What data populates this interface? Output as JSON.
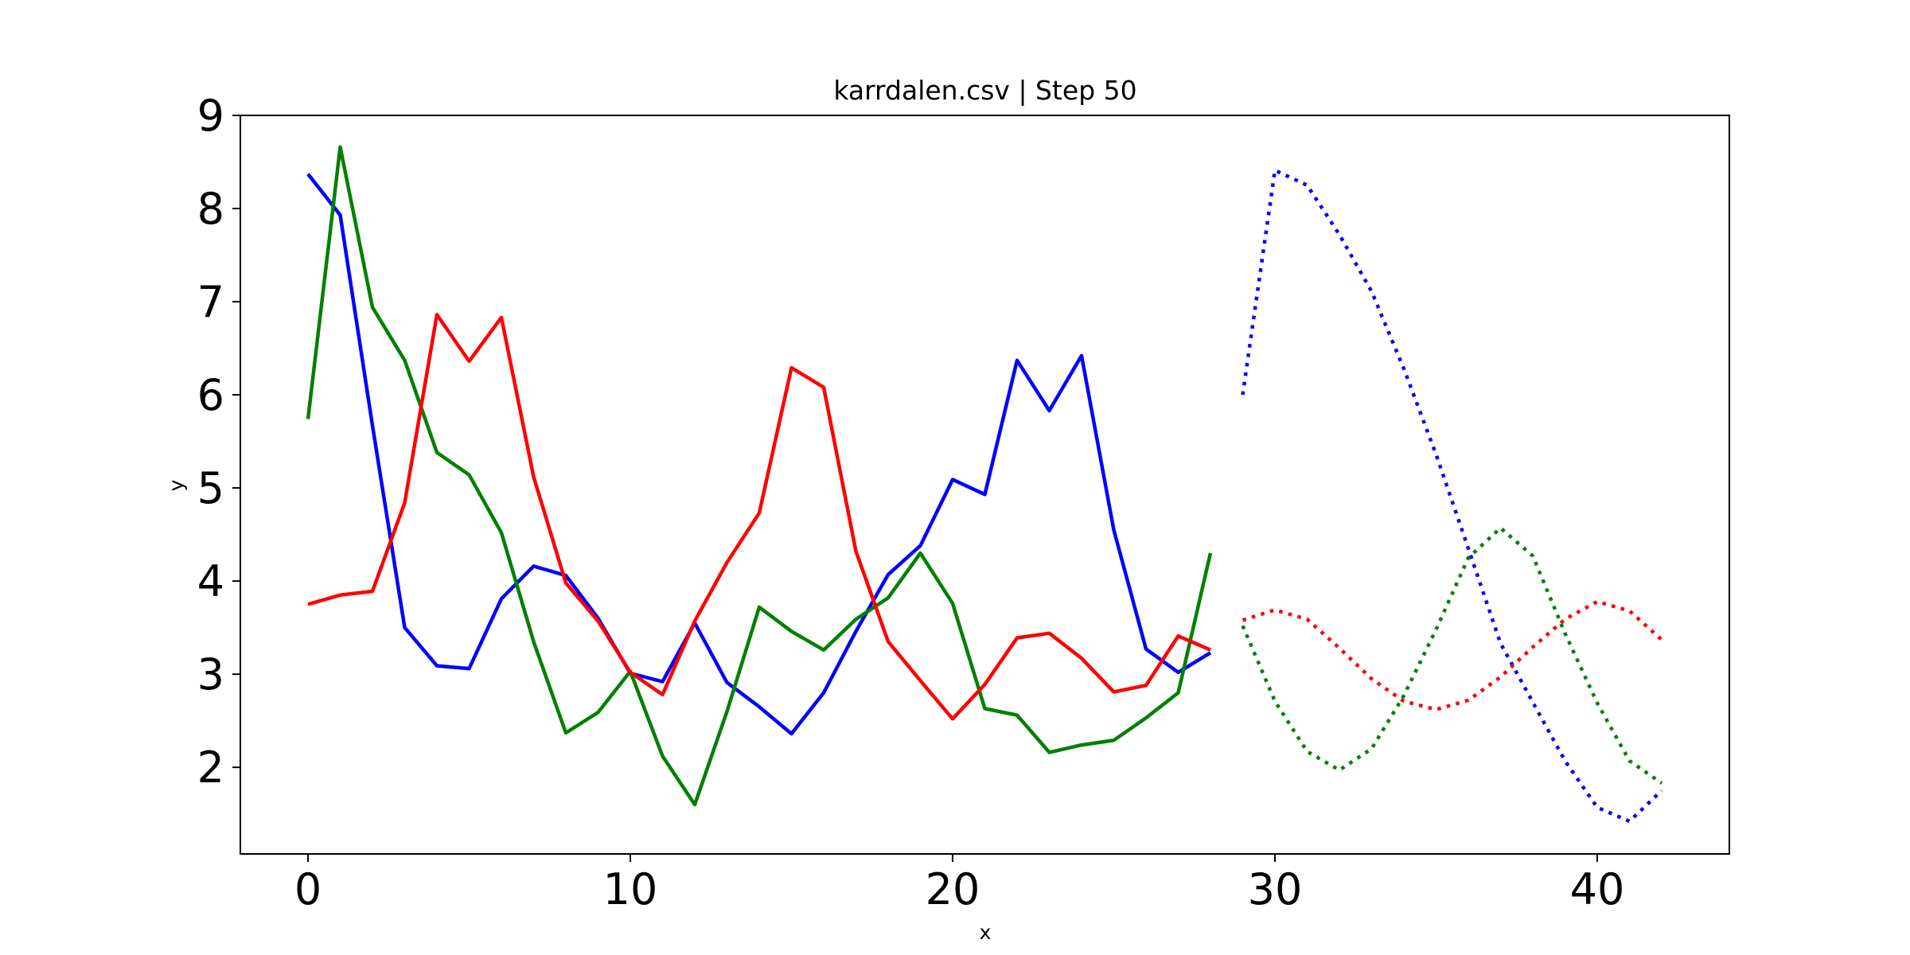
{
  "chart_data": {
    "type": "line",
    "title": "karrdalen.csv | Step 50",
    "xlabel": "x",
    "ylabel": "y",
    "xlim": [
      -2.1,
      44.1
    ],
    "ylim": [
      1.07,
      9.0
    ],
    "xticks": [
      0,
      10,
      20,
      30,
      40
    ],
    "yticks": [
      2,
      3,
      4,
      5,
      6,
      7,
      8,
      9
    ],
    "grid": false,
    "series": [
      {
        "color": "#0000ff",
        "style": "solid",
        "x": [
          0,
          1,
          2,
          3,
          4,
          5,
          6,
          7,
          8,
          9,
          10,
          11,
          12,
          13,
          14,
          15,
          16,
          17,
          18,
          19,
          20,
          21,
          22,
          23,
          24,
          25,
          26,
          27,
          28
        ],
        "y": [
          8.37,
          7.93,
          5.67,
          3.5,
          3.09,
          3.06,
          3.81,
          4.16,
          4.06,
          3.6,
          3.01,
          2.92,
          3.55,
          2.91,
          2.65,
          2.36,
          2.8,
          3.46,
          4.07,
          4.38,
          5.09,
          4.93,
          6.37,
          5.83,
          6.42,
          4.55,
          3.27,
          3.02,
          3.23
        ]
      },
      {
        "color": "#008000",
        "style": "solid",
        "x": [
          0,
          1,
          2,
          3,
          4,
          5,
          6,
          7,
          8,
          9,
          10,
          11,
          12,
          13,
          14,
          15,
          16,
          17,
          18,
          19,
          20,
          21,
          22,
          23,
          24,
          25,
          26,
          27,
          28
        ],
        "y": [
          5.74,
          8.66,
          6.94,
          6.37,
          5.38,
          5.14,
          4.52,
          3.35,
          2.37,
          2.59,
          3.03,
          2.12,
          1.6,
          2.6,
          3.72,
          3.46,
          3.26,
          3.59,
          3.82,
          4.3,
          3.76,
          2.63,
          2.56,
          2.16,
          2.24,
          2.29,
          2.53,
          2.8,
          4.3
        ]
      },
      {
        "color": "#ff0000",
        "style": "solid",
        "x": [
          0,
          1,
          2,
          3,
          4,
          5,
          6,
          7,
          8,
          9,
          10,
          11,
          12,
          13,
          14,
          15,
          16,
          17,
          18,
          19,
          20,
          21,
          22,
          23,
          24,
          25,
          26,
          27,
          28
        ],
        "y": [
          3.75,
          3.85,
          3.89,
          4.84,
          6.86,
          6.36,
          6.83,
          5.12,
          3.98,
          3.57,
          3.02,
          2.78,
          3.57,
          4.2,
          4.73,
          6.29,
          6.08,
          4.32,
          3.35,
          2.93,
          2.52,
          2.89,
          3.39,
          3.44,
          3.17,
          2.81,
          2.88,
          3.41,
          3.26
        ]
      },
      {
        "color": "#0000ff",
        "style": "dotted",
        "x": [
          29,
          30,
          31,
          32,
          33,
          34,
          35,
          36,
          37,
          38,
          39,
          40,
          41,
          42
        ],
        "y": [
          6.0,
          8.41,
          8.25,
          7.72,
          7.11,
          6.28,
          5.36,
          4.35,
          3.33,
          2.7,
          2.07,
          1.57,
          1.42,
          1.75
        ]
      },
      {
        "color": "#008000",
        "style": "dotted",
        "x": [
          29,
          30,
          31,
          32,
          33,
          34,
          35,
          36,
          37,
          38,
          39,
          40,
          41,
          42
        ],
        "y": [
          3.52,
          2.71,
          2.17,
          1.97,
          2.2,
          2.77,
          3.48,
          4.25,
          4.57,
          4.27,
          3.44,
          2.69,
          2.07,
          1.83
        ]
      },
      {
        "color": "#ff0000",
        "style": "dotted",
        "x": [
          29,
          30,
          31,
          32,
          33,
          34,
          35,
          36,
          37,
          38,
          39,
          40,
          41,
          42
        ],
        "y": [
          3.58,
          3.69,
          3.59,
          3.28,
          2.95,
          2.71,
          2.62,
          2.72,
          2.97,
          3.29,
          3.59,
          3.78,
          3.68,
          3.37
        ]
      }
    ]
  }
}
